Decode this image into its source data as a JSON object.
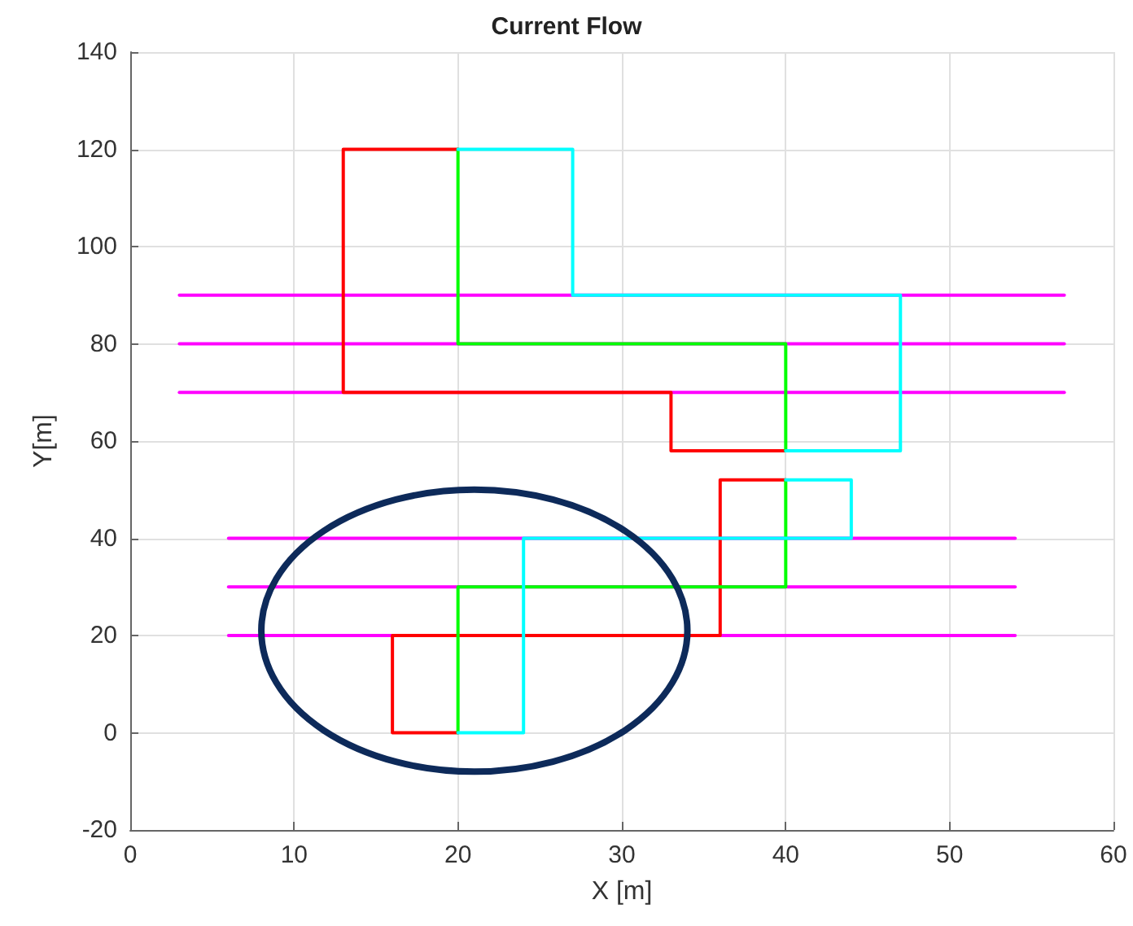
{
  "chart_data": {
    "type": "line",
    "title": "Current Flow",
    "xlabel": "X [m]",
    "ylabel": "Y[m]",
    "xlim": [
      0,
      60
    ],
    "xticks": [
      0,
      10,
      20,
      30,
      40,
      50,
      60
    ],
    "ylim": [
      -20,
      140
    ],
    "yticks": [
      -20,
      0,
      20,
      40,
      60,
      80,
      100,
      120,
      140
    ],
    "grid": true,
    "marker": "none",
    "line_style": "solid",
    "series": [
      {
        "color": "#ff00ff",
        "x": [
          3,
          57
        ],
        "values": [
          90,
          90
        ]
      },
      {
        "color": "#ff00ff",
        "x": [
          3,
          57
        ],
        "values": [
          80,
          80
        ]
      },
      {
        "color": "#ff00ff",
        "x": [
          3,
          57
        ],
        "values": [
          70,
          70
        ]
      },
      {
        "color": "#ff00ff",
        "x": [
          6,
          54
        ],
        "values": [
          40,
          40
        ]
      },
      {
        "color": "#ff00ff",
        "x": [
          6,
          54
        ],
        "values": [
          30,
          30
        ]
      },
      {
        "color": "#ff00ff",
        "x": [
          6,
          54
        ],
        "values": [
          20,
          20
        ]
      },
      {
        "color": "#ff0000",
        "x": [
          20,
          13,
          13,
          33,
          33,
          40
        ],
        "values": [
          120,
          120,
          70,
          70,
          58,
          58
        ]
      },
      {
        "color": "#ff0000",
        "x": [
          40,
          36,
          36,
          16,
          16,
          20
        ],
        "values": [
          52,
          52,
          20,
          20,
          0,
          0
        ]
      },
      {
        "color": "#00ff00",
        "x": [
          20,
          20,
          40,
          40
        ],
        "values": [
          120,
          80,
          80,
          58
        ]
      },
      {
        "color": "#00ff00",
        "x": [
          40,
          40,
          20,
          20
        ],
        "values": [
          52,
          30,
          30,
          0
        ]
      },
      {
        "color": "#00ffff",
        "x": [
          20,
          27,
          27,
          47,
          47,
          40
        ],
        "values": [
          120,
          120,
          90,
          90,
          58,
          58
        ]
      },
      {
        "color": "#00ffff",
        "x": [
          40,
          44,
          44,
          24,
          24,
          20
        ],
        "values": [
          52,
          52,
          40,
          40,
          0,
          0
        ]
      }
    ]
  }
}
